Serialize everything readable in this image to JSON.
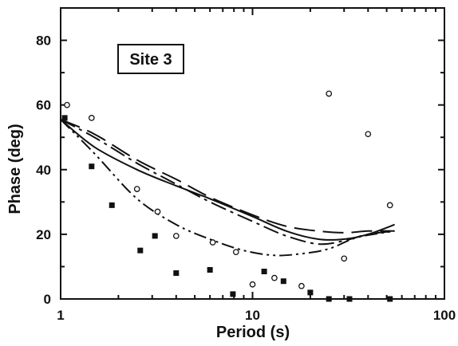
{
  "chart_data": {
    "type": "scatter",
    "annotation": "Site 3",
    "xlabel": "Period (s)",
    "ylabel": "Phase (deg)",
    "x_scale": "log",
    "xlim": [
      1,
      100
    ],
    "ylim": [
      0,
      90
    ],
    "x_ticks": [
      1,
      10,
      100
    ],
    "y_ticks": [
      0,
      20,
      40,
      60,
      80
    ],
    "grid": false,
    "legend": "none",
    "series": [
      {
        "marker": "open-circle",
        "color": "#111111",
        "points": [
          [
            1.08,
            60
          ],
          [
            1.45,
            56
          ],
          [
            2.5,
            34
          ],
          [
            3.2,
            27
          ],
          [
            4.0,
            19.5
          ],
          [
            6.2,
            17.5
          ],
          [
            8.2,
            14.5
          ],
          [
            10.0,
            4.5
          ],
          [
            13.0,
            6.5
          ],
          [
            18.0,
            4
          ],
          [
            25.0,
            63.5
          ],
          [
            30.0,
            12.5
          ],
          [
            40.0,
            51
          ],
          [
            52.0,
            29
          ]
        ]
      },
      {
        "marker": "filled-square",
        "color": "#111111",
        "points": [
          [
            1.05,
            56
          ],
          [
            1.45,
            41
          ],
          [
            1.85,
            29
          ],
          [
            2.6,
            15
          ],
          [
            3.1,
            19.5
          ],
          [
            4.0,
            8
          ],
          [
            6.0,
            9
          ],
          [
            7.9,
            1.5
          ],
          [
            11.5,
            8.5
          ],
          [
            14.5,
            5.5
          ],
          [
            20.0,
            2
          ],
          [
            25.0,
            0
          ],
          [
            32.0,
            0
          ],
          [
            52.0,
            0
          ]
        ]
      },
      {
        "line": "solid",
        "color": "#111111",
        "points": [
          [
            1.0,
            55.5
          ],
          [
            1.5,
            47
          ],
          [
            2.5,
            40
          ],
          [
            4.0,
            35
          ],
          [
            6.0,
            31
          ],
          [
            10.0,
            25.5
          ],
          [
            15.0,
            21
          ],
          [
            22.0,
            18.5
          ],
          [
            30.0,
            18.5
          ],
          [
            40.0,
            20
          ],
          [
            55.0,
            23
          ]
        ]
      },
      {
        "line": "long-dash",
        "color": "#111111",
        "points": [
          [
            1.0,
            55.5
          ],
          [
            1.5,
            51
          ],
          [
            2.5,
            43
          ],
          [
            4.0,
            37
          ],
          [
            6.0,
            31.5
          ],
          [
            10.0,
            26
          ],
          [
            15.0,
            22.5
          ],
          [
            22.0,
            21
          ],
          [
            30.0,
            20.5
          ],
          [
            40.0,
            21
          ],
          [
            55.0,
            21
          ]
        ]
      },
      {
        "line": "dash-dot",
        "color": "#111111",
        "points": [
          [
            1.0,
            55.5
          ],
          [
            1.5,
            50
          ],
          [
            2.5,
            42
          ],
          [
            4.0,
            35.5
          ],
          [
            6.0,
            30
          ],
          [
            10.0,
            24
          ],
          [
            15.0,
            19.5
          ],
          [
            22.0,
            17
          ],
          [
            30.0,
            18
          ],
          [
            40.0,
            20
          ],
          [
            55.0,
            21
          ]
        ]
      },
      {
        "line": "dash-dot-dot",
        "color": "#111111",
        "points": [
          [
            1.0,
            55.5
          ],
          [
            1.5,
            45
          ],
          [
            2.5,
            31
          ],
          [
            4.0,
            23
          ],
          [
            6.0,
            18.5
          ],
          [
            9.0,
            15
          ],
          [
            13.0,
            13.5
          ],
          [
            18.0,
            14
          ],
          [
            25.0,
            15.5
          ],
          [
            35.0,
            19
          ],
          [
            55.0,
            21
          ]
        ]
      }
    ]
  }
}
